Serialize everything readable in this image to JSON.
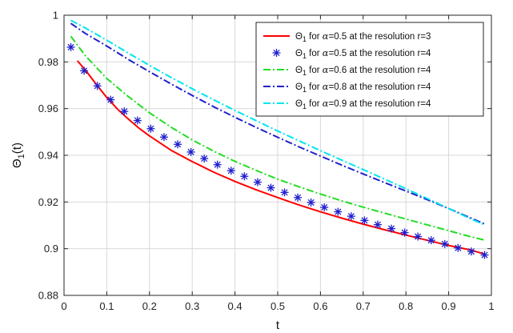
{
  "chart_data": {
    "type": "line",
    "xlabel": "t",
    "ylabel_main": "Θ",
    "ylabel_sub": "1",
    "ylabel_tail": "(t)",
    "xlim": [
      0,
      1
    ],
    "ylim": [
      0.88,
      1
    ],
    "xticks": [
      0,
      0.1,
      0.2,
      0.3,
      0.4,
      0.5,
      0.6,
      0.7,
      0.8,
      0.9,
      1
    ],
    "xtick_labels": [
      "0",
      "0.1",
      "0.2",
      "0.3",
      "0.4",
      "0.5",
      "0.6",
      "0.7",
      "0.8",
      "0.9",
      "1"
    ],
    "yticks": [
      0.88,
      0.9,
      0.92,
      0.94,
      0.96,
      0.98,
      1
    ],
    "ytick_labels": [
      "0.88",
      "0.9",
      "0.92",
      "0.94",
      "0.96",
      "0.98",
      "1"
    ],
    "grid": true,
    "legend_position": "top-right",
    "series": [
      {
        "legend": {
          "sym": "Θ",
          "sub": "1",
          "pre": " for ",
          "greek": "α",
          "post": "=0.5 at the resolution r=3"
        },
        "color": "#ff0000",
        "style": "solid",
        "marker": "none",
        "x": [
          0.031,
          0.05,
          0.075,
          0.1,
          0.125,
          0.15,
          0.175,
          0.2,
          0.25,
          0.3,
          0.35,
          0.4,
          0.45,
          0.5,
          0.55,
          0.6,
          0.65,
          0.7,
          0.75,
          0.8,
          0.85,
          0.9,
          0.95,
          0.984
        ],
        "y": [
          0.9805,
          0.9765,
          0.9705,
          0.9648,
          0.9598,
          0.9556,
          0.9517,
          0.9483,
          0.9422,
          0.9373,
          0.9328,
          0.9288,
          0.9252,
          0.9219,
          0.9187,
          0.9158,
          0.9131,
          0.9105,
          0.9081,
          0.9058,
          0.9036,
          0.9014,
          0.8995,
          0.8977
        ]
      },
      {
        "legend": {
          "sym": "Θ",
          "sub": "1",
          "pre": " for ",
          "greek": "α",
          "post": "=0.5 at the resolution r=4"
        },
        "color": "#1f1fcf",
        "style": "none",
        "marker": "asterisk",
        "x": [
          0.016,
          0.047,
          0.078,
          0.109,
          0.141,
          0.172,
          0.203,
          0.234,
          0.266,
          0.297,
          0.328,
          0.359,
          0.391,
          0.422,
          0.453,
          0.484,
          0.516,
          0.547,
          0.578,
          0.609,
          0.641,
          0.672,
          0.703,
          0.734,
          0.766,
          0.797,
          0.828,
          0.859,
          0.891,
          0.922,
          0.953,
          0.984
        ],
        "y": [
          0.9863,
          0.9762,
          0.9697,
          0.9638,
          0.9588,
          0.9549,
          0.9514,
          0.9478,
          0.9447,
          0.9414,
          0.9386,
          0.936,
          0.9334,
          0.931,
          0.9285,
          0.9261,
          0.9241,
          0.9219,
          0.9198,
          0.9177,
          0.9158,
          0.9139,
          0.9121,
          0.9103,
          0.9086,
          0.9069,
          0.9052,
          0.9036,
          0.902,
          0.9003,
          0.8988,
          0.8973
        ]
      },
      {
        "legend": {
          "sym": "Θ",
          "sub": "1",
          "pre": " for ",
          "greek": "α",
          "post": "=0.6 at the resolution r=4"
        },
        "color": "#22dd22",
        "style": "dashdot",
        "marker": "none",
        "x": [
          0.016,
          0.05,
          0.1,
          0.15,
          0.2,
          0.25,
          0.3,
          0.35,
          0.4,
          0.45,
          0.5,
          0.55,
          0.6,
          0.65,
          0.7,
          0.75,
          0.8,
          0.85,
          0.9,
          0.95,
          0.984
        ],
        "y": [
          0.991,
          0.9826,
          0.9729,
          0.9652,
          0.9582,
          0.9521,
          0.9466,
          0.9418,
          0.9374,
          0.9335,
          0.9298,
          0.9265,
          0.9234,
          0.9205,
          0.9178,
          0.9152,
          0.9127,
          0.9102,
          0.9077,
          0.9052,
          0.9037
        ]
      },
      {
        "legend": {
          "sym": "Θ",
          "sub": "1",
          "pre": " for ",
          "greek": "α",
          "post": "=0.8 at the resolution r=4"
        },
        "color": "#1f1fcf",
        "style": "dashdot",
        "marker": "none",
        "x": [
          0.016,
          0.05,
          0.1,
          0.15,
          0.2,
          0.25,
          0.3,
          0.35,
          0.4,
          0.45,
          0.5,
          0.55,
          0.6,
          0.65,
          0.7,
          0.75,
          0.8,
          0.85,
          0.9,
          0.95,
          0.984
        ],
        "y": [
          0.9965,
          0.9922,
          0.9868,
          0.9811,
          0.9758,
          0.9706,
          0.9656,
          0.9608,
          0.9563,
          0.9519,
          0.9477,
          0.9436,
          0.9397,
          0.9358,
          0.932,
          0.9283,
          0.9247,
          0.921,
          0.9172,
          0.9133,
          0.9106
        ]
      },
      {
        "legend": {
          "sym": "Θ",
          "sub": "1",
          "pre": " for ",
          "greek": "α",
          "post": "=0.9 at the resolution r=4"
        },
        "color": "#00e5ee",
        "style": "dashdot",
        "marker": "none",
        "x": [
          0.016,
          0.05,
          0.1,
          0.15,
          0.2,
          0.25,
          0.3,
          0.35,
          0.4,
          0.45,
          0.5,
          0.55,
          0.6,
          0.65,
          0.7,
          0.75,
          0.8,
          0.85,
          0.9,
          0.95,
          0.984
        ],
        "y": [
          0.9978,
          0.9945,
          0.9893,
          0.9838,
          0.9785,
          0.9734,
          0.9685,
          0.9638,
          0.9592,
          0.9548,
          0.9504,
          0.9462,
          0.942,
          0.9379,
          0.9339,
          0.9298,
          0.9257,
          0.9215,
          0.9172,
          0.9129,
          0.9102
        ]
      }
    ]
  }
}
